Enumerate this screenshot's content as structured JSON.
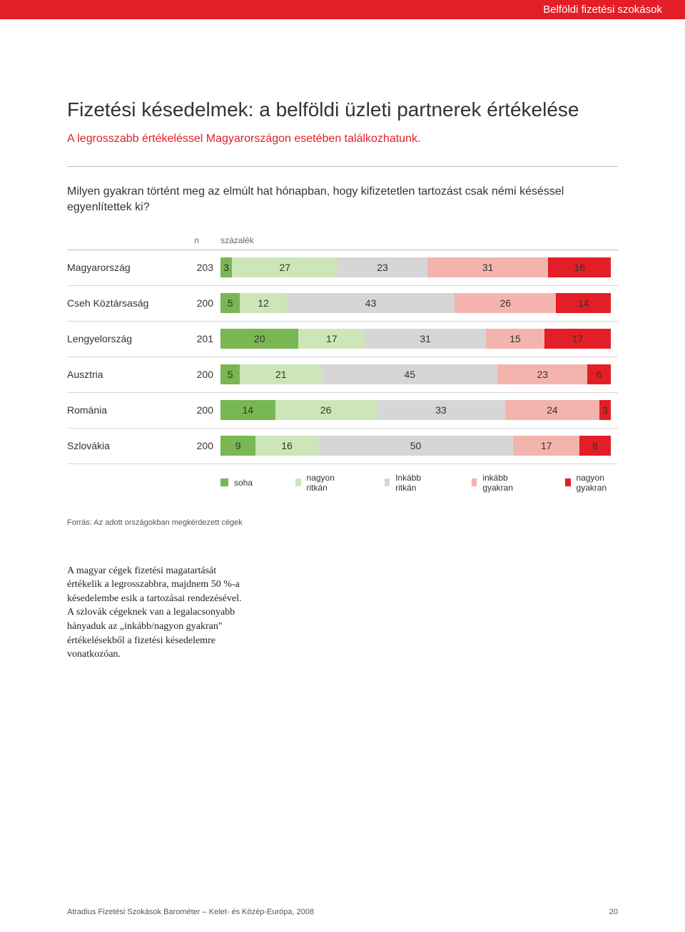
{
  "header": {
    "section_label": "Belföldi fizetési szokások"
  },
  "page_title": "Fizetési késedelmek: a belföldi üzleti partnerek értékelése",
  "subtitle": "A legrosszabb értékeléssel Magyarországon esetében találkozhatunk.",
  "question": "Milyen gyakran történt meg az elmúlt hat hónapban, hogy kifizetetlen tartozást csak némi késéssel egyenlítettek ki?",
  "chart": {
    "type": "stacked-bar-horizontal",
    "col_n_label": "n",
    "col_pct_label": "százalék",
    "segment_colors": [
      "#79b752",
      "#cde6b7",
      "#d6d6d6",
      "#f4b4ae",
      "#e41e26"
    ],
    "text_color": "#333333",
    "value_fontsize": 14,
    "label_fontsize": 14,
    "border_color": "#d6d6d6",
    "rows": [
      {
        "country": "Magyarország",
        "n": 203,
        "values": [
          3,
          27,
          23,
          31,
          16
        ]
      },
      {
        "country": "Cseh Köztársaság",
        "n": 200,
        "values": [
          5,
          12,
          43,
          26,
          14
        ]
      },
      {
        "country": "Lengyelország",
        "n": 201,
        "values": [
          20,
          17,
          31,
          15,
          17
        ]
      },
      {
        "country": "Ausztria",
        "n": 200,
        "values": [
          5,
          21,
          45,
          23,
          6
        ]
      },
      {
        "country": "Románia",
        "n": 200,
        "values": [
          14,
          26,
          33,
          24,
          3
        ]
      },
      {
        "country": "Szlovákia",
        "n": 200,
        "values": [
          9,
          16,
          50,
          17,
          8
        ]
      }
    ],
    "legend": [
      {
        "label": "soha",
        "color": "#79b752"
      },
      {
        "label": "nagyon ritkán",
        "color": "#cde6b7"
      },
      {
        "label": "Inkább ritkán",
        "color": "#d6d6d6"
      },
      {
        "label": "inkább gyakran",
        "color": "#f4b4ae"
      },
      {
        "label": "nagyon gyakran",
        "color": "#e41e26"
      }
    ]
  },
  "source": "Forrás: Az adott országokban megkérdezett cégek",
  "body_copy": "A magyar cégek fizetési magatartását értékelik a legrosszabbra, majdnem 50 %-a késedelembe esik a tartozásai rendezésével. A szlovák cégeknek van a legalacsonyabb hányaduk az „inkább/nagyon gyakran\" értékelésekből a fizetési késedelemre vonatkozóan.",
  "footer": {
    "left": "Atradius Fizetési Szokások Barométer – Kelet- és Közép-Európa, 2008",
    "page_number": "20"
  }
}
